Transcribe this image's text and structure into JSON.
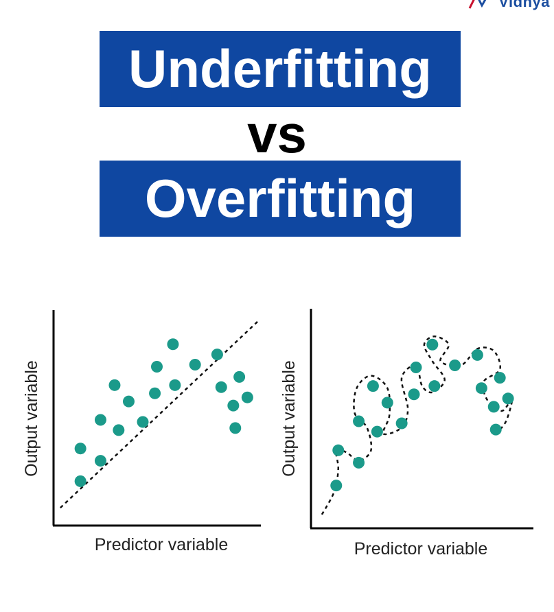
{
  "brand": {
    "text": "Vidhya",
    "accent_colors": [
      "#c8102e",
      "#1b4ea0"
    ]
  },
  "titles": {
    "line1": "Underfitting",
    "line2": "vs",
    "line3": "Overfitting",
    "box_color": "#0f47a1"
  },
  "chart_data": [
    {
      "type": "scatter",
      "fit": "linear-dashed",
      "xlabel": "Predictor variable",
      "ylabel": "Output variable",
      "xlim": [
        0,
        10
      ],
      "ylim": [
        0,
        10
      ],
      "point_color": "#1b9a8a",
      "points": [
        {
          "x": 1.2,
          "y": 1.9
        },
        {
          "x": 1.2,
          "y": 3.5
        },
        {
          "x": 2.2,
          "y": 2.9
        },
        {
          "x": 2.2,
          "y": 4.9
        },
        {
          "x": 2.9,
          "y": 6.6
        },
        {
          "x": 3.1,
          "y": 4.4
        },
        {
          "x": 3.6,
          "y": 5.8
        },
        {
          "x": 4.3,
          "y": 4.8
        },
        {
          "x": 4.9,
          "y": 6.2
        },
        {
          "x": 5.0,
          "y": 7.5
        },
        {
          "x": 5.8,
          "y": 8.6
        },
        {
          "x": 5.9,
          "y": 6.6
        },
        {
          "x": 6.9,
          "y": 7.6
        },
        {
          "x": 8.0,
          "y": 8.1
        },
        {
          "x": 8.2,
          "y": 6.5
        },
        {
          "x": 8.8,
          "y": 5.6
        },
        {
          "x": 9.1,
          "y": 7.0
        },
        {
          "x": 9.5,
          "y": 6.0
        },
        {
          "x": 8.9,
          "y": 4.5
        }
      ],
      "fit_line": [
        {
          "x": 0.2,
          "y": 0.6
        },
        {
          "x": 10.0,
          "y": 9.7
        }
      ]
    },
    {
      "type": "scatter",
      "fit": "wiggly-dashed",
      "xlabel": "Predictor variable",
      "ylabel": "Output variable",
      "xlim": [
        0,
        10
      ],
      "ylim": [
        0,
        10
      ],
      "point_color": "#1b9a8a",
      "points": [
        {
          "x": 1.1,
          "y": 1.8
        },
        {
          "x": 1.2,
          "y": 3.5
        },
        {
          "x": 2.2,
          "y": 2.9
        },
        {
          "x": 2.2,
          "y": 4.9
        },
        {
          "x": 2.9,
          "y": 6.6
        },
        {
          "x": 3.1,
          "y": 4.4
        },
        {
          "x": 3.6,
          "y": 5.8
        },
        {
          "x": 4.3,
          "y": 4.8
        },
        {
          "x": 4.9,
          "y": 6.2
        },
        {
          "x": 5.0,
          "y": 7.5
        },
        {
          "x": 5.8,
          "y": 8.6
        },
        {
          "x": 5.9,
          "y": 6.6
        },
        {
          "x": 6.9,
          "y": 7.6
        },
        {
          "x": 8.0,
          "y": 8.1
        },
        {
          "x": 8.2,
          "y": 6.5
        },
        {
          "x": 8.8,
          "y": 5.6
        },
        {
          "x": 9.1,
          "y": 7.0
        },
        {
          "x": 9.5,
          "y": 6.0
        },
        {
          "x": 8.9,
          "y": 4.5
        }
      ],
      "fit_path": [
        {
          "x": 0.4,
          "y": 0.4
        },
        {
          "x": 1.0,
          "y": 1.5
        },
        {
          "x": 1.2,
          "y": 2.6
        },
        {
          "x": 1.1,
          "y": 3.5
        },
        {
          "x": 1.6,
          "y": 3.4
        },
        {
          "x": 2.2,
          "y": 3.0
        },
        {
          "x": 2.8,
          "y": 3.5
        },
        {
          "x": 2.6,
          "y": 4.6
        },
        {
          "x": 2.0,
          "y": 5.3
        },
        {
          "x": 2.1,
          "y": 6.5
        },
        {
          "x": 2.8,
          "y": 7.1
        },
        {
          "x": 3.6,
          "y": 6.5
        },
        {
          "x": 3.7,
          "y": 5.2
        },
        {
          "x": 3.4,
          "y": 4.3
        },
        {
          "x": 4.3,
          "y": 4.6
        },
        {
          "x": 4.6,
          "y": 5.5
        },
        {
          "x": 4.3,
          "y": 7.0
        },
        {
          "x": 5.0,
          "y": 7.6
        },
        {
          "x": 5.3,
          "y": 6.6
        },
        {
          "x": 5.8,
          "y": 6.3
        },
        {
          "x": 6.4,
          "y": 6.9
        },
        {
          "x": 5.8,
          "y": 7.8
        },
        {
          "x": 5.4,
          "y": 8.6
        },
        {
          "x": 5.9,
          "y": 9.0
        },
        {
          "x": 6.6,
          "y": 8.6
        },
        {
          "x": 6.2,
          "y": 7.8
        },
        {
          "x": 7.2,
          "y": 7.6
        },
        {
          "x": 8.0,
          "y": 8.4
        },
        {
          "x": 8.8,
          "y": 8.3
        },
        {
          "x": 9.1,
          "y": 7.4
        },
        {
          "x": 8.3,
          "y": 6.8
        },
        {
          "x": 8.5,
          "y": 5.9
        },
        {
          "x": 9.2,
          "y": 5.4
        },
        {
          "x": 9.7,
          "y": 6.0
        },
        {
          "x": 9.4,
          "y": 4.9
        },
        {
          "x": 8.9,
          "y": 4.3
        }
      ]
    }
  ]
}
